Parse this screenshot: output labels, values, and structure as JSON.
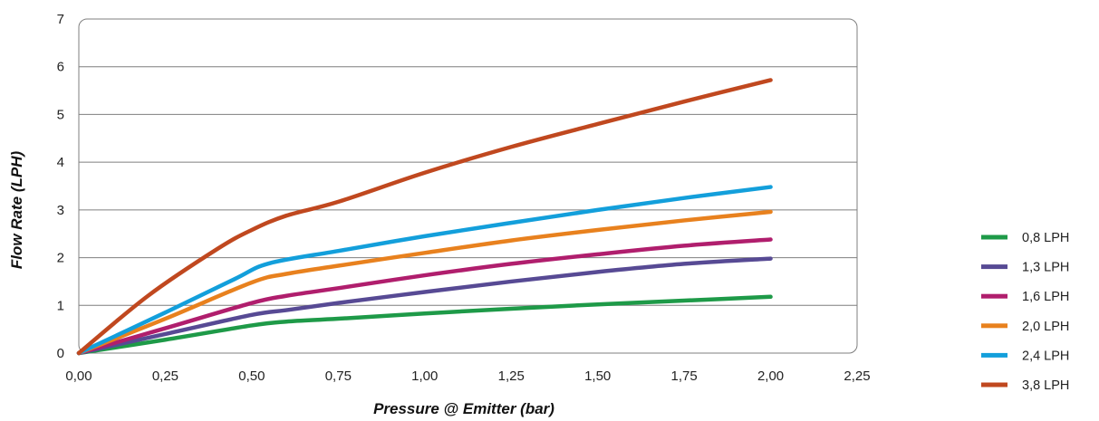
{
  "chart_data": {
    "type": "line",
    "title": "",
    "xlabel": "Pressure @ Emitter (bar)",
    "ylabel": "Flow Rate (LPH)",
    "xlim": [
      0,
      2.25
    ],
    "ylim": [
      0,
      7
    ],
    "x_ticks": [
      "0,00",
      "0,25",
      "0,50",
      "0,75",
      "1,00",
      "1,25",
      "1,50",
      "1,75",
      "2,00",
      "2,25"
    ],
    "y_ticks": [
      "0",
      "1",
      "2",
      "3",
      "4",
      "5",
      "6",
      "7"
    ],
    "grid": "horizontal",
    "legend_position": "right",
    "series": [
      {
        "name": "0,8 LPH",
        "color": "#1e9a48",
        "x": [
          0,
          0.25,
          0.5,
          0.6,
          0.75,
          1.0,
          1.25,
          1.5,
          1.75,
          2.0
        ],
        "y": [
          0,
          0.28,
          0.58,
          0.66,
          0.72,
          0.83,
          0.93,
          1.02,
          1.1,
          1.18
        ]
      },
      {
        "name": "1,3 LPH",
        "color": "#574a94",
        "x": [
          0,
          0.25,
          0.5,
          0.6,
          0.75,
          1.0,
          1.25,
          1.5,
          1.75,
          2.0
        ],
        "y": [
          0,
          0.4,
          0.8,
          0.9,
          1.05,
          1.28,
          1.5,
          1.7,
          1.87,
          1.98
        ]
      },
      {
        "name": "1,6 LPH",
        "color": "#b01e6d",
        "x": [
          0,
          0.25,
          0.5,
          0.6,
          0.75,
          1.0,
          1.25,
          1.5,
          1.75,
          2.0
        ],
        "y": [
          0,
          0.52,
          1.05,
          1.2,
          1.36,
          1.63,
          1.87,
          2.07,
          2.25,
          2.38
        ]
      },
      {
        "name": "2,0 LPH",
        "color": "#e8811e",
        "x": [
          0,
          0.25,
          0.5,
          0.6,
          0.75,
          1.0,
          1.25,
          1.5,
          1.75,
          2.0
        ],
        "y": [
          0,
          0.72,
          1.48,
          1.66,
          1.83,
          2.1,
          2.36,
          2.58,
          2.78,
          2.96
        ]
      },
      {
        "name": "2,4 LPH",
        "color": "#139fdb",
        "x": [
          0,
          0.25,
          0.45,
          0.55,
          0.75,
          1.0,
          1.25,
          1.5,
          1.75,
          2.0
        ],
        "y": [
          0,
          0.85,
          1.55,
          1.88,
          2.14,
          2.45,
          2.73,
          3.0,
          3.25,
          3.48
        ]
      },
      {
        "name": "3,8 LPH",
        "color": "#c0481f",
        "x": [
          0,
          0.2,
          0.4,
          0.5,
          0.6,
          0.75,
          1.0,
          1.25,
          1.5,
          1.75,
          2.0
        ],
        "y": [
          0,
          1.2,
          2.18,
          2.58,
          2.88,
          3.17,
          3.78,
          4.32,
          4.8,
          5.27,
          5.72
        ]
      }
    ]
  }
}
